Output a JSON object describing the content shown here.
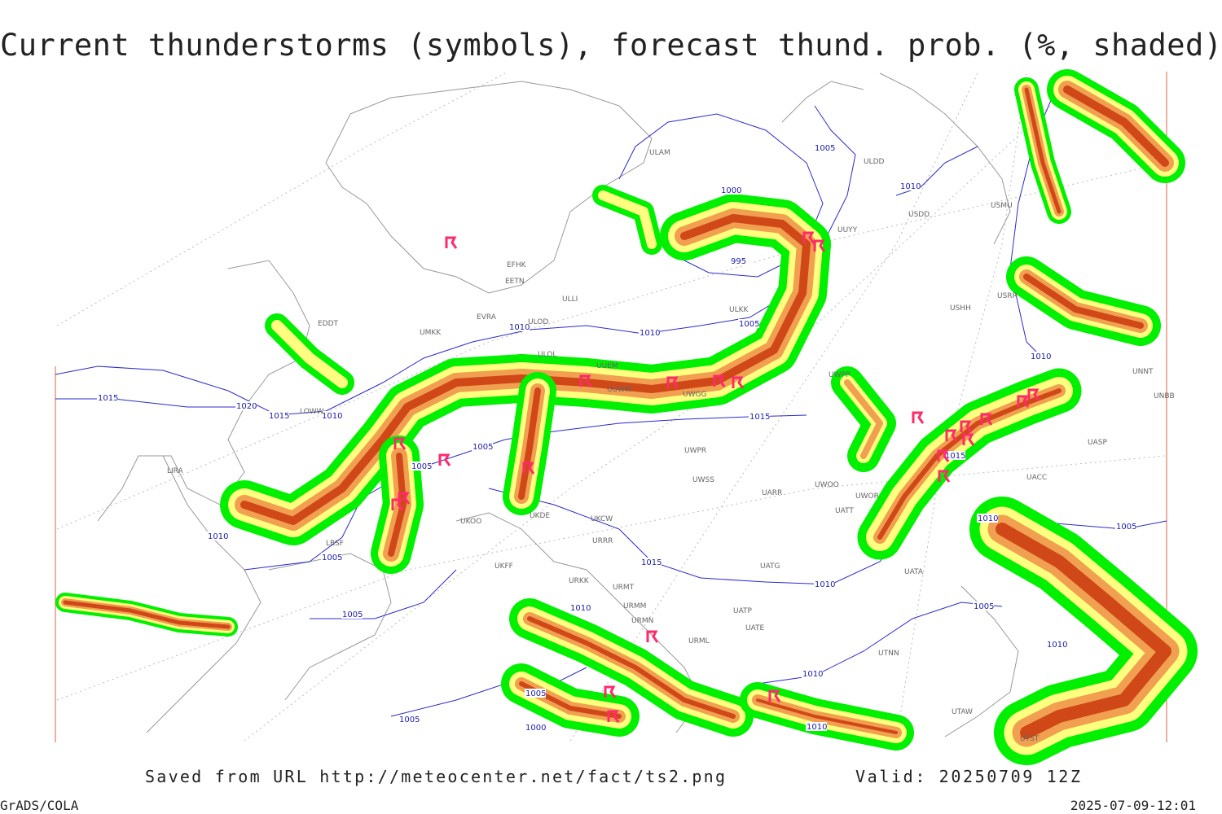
{
  "title": "Current thunderstorms (symbols), forecast thund. prob. (%, shaded)",
  "footer": {
    "source": "Saved from URL http://meteocenter.net/fact/ts2.png",
    "valid": "Valid: 20250709 12Z",
    "software": "GrADS/COLA",
    "timestamp": "2025-07-09-12:01"
  },
  "isobar_labels": [
    "1015",
    "1020",
    "1015",
    "1010",
    "1005",
    "1005",
    "1010",
    "1005",
    "1010",
    "1010",
    "1005",
    "1000",
    "995",
    "1005",
    "1010",
    "1005",
    "1015",
    "1015",
    "1010",
    "1010",
    "1005",
    "1015",
    "1010",
    "1005",
    "1010",
    "1005",
    "1000",
    "1010",
    "1005",
    "1010",
    "1010"
  ],
  "station_labels": [
    "EFHK",
    "EETN",
    "ULLI",
    "EVRA",
    "ULOD",
    "UMKK",
    "EDDT",
    "LOWW",
    "LIRA",
    "UUEM",
    "ULOL",
    "UUWW",
    "UWGG",
    "UWPP",
    "ULKK",
    "UUYY",
    "ULDD",
    "USDD",
    "USMU",
    "USRR",
    "USHH",
    "UNNT",
    "UNBB",
    "UASP",
    "UACC",
    "UWPR",
    "UWSS",
    "UARR",
    "UWOO",
    "UWOR",
    "UATT",
    "UKOO",
    "UKDE",
    "UKCW",
    "URRR",
    "UKFF",
    "URKK",
    "URMT",
    "URMM",
    "URMN",
    "URML",
    "UATG",
    "UATP",
    "UATE",
    "UATA",
    "UTNN",
    "UTAW",
    "UTST",
    "ULAM",
    "LBSF"
  ]
}
